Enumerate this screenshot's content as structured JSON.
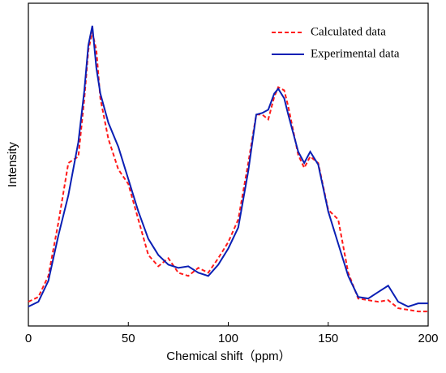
{
  "chart_data": {
    "type": "line",
    "xlabel": "Chemical shift（ppm）",
    "ylabel": "Intensity",
    "xlim": [
      0,
      200
    ],
    "xticks": [
      0,
      50,
      100,
      150,
      200
    ],
    "ylim": [
      0,
      100
    ],
    "legend": "upper right",
    "x": [
      0,
      5,
      10,
      15,
      20,
      25,
      28,
      30,
      32,
      34,
      36,
      40,
      45,
      50,
      55,
      60,
      65,
      70,
      75,
      80,
      85,
      90,
      95,
      100,
      105,
      110,
      114,
      117,
      120,
      123,
      125,
      128,
      130,
      135,
      138,
      141,
      145,
      150,
      155,
      160,
      165,
      170,
      175,
      180,
      185,
      190,
      195,
      200
    ],
    "series": [
      {
        "name": "Calculated data",
        "color": "#ff1a1a",
        "style": "dashed",
        "values": [
          7.5,
          9,
          15.5,
          32,
          50.5,
          52.5,
          70.5,
          85.5,
          91,
          85.5,
          70.5,
          58,
          48.5,
          44,
          33,
          22,
          18.5,
          21,
          16.5,
          15.5,
          18,
          16.5,
          21,
          26,
          33,
          50.5,
          65.5,
          65.5,
          64,
          71,
          74,
          73,
          68,
          53,
          49,
          52.5,
          50.5,
          36,
          33,
          16.5,
          8.5,
          8,
          7.5,
          8,
          5.5,
          5,
          4.5,
          4.5
        ]
      },
      {
        "name": "Experimental data",
        "color": "#0a1fb4",
        "style": "solid",
        "values": [
          6,
          7.5,
          14,
          28,
          40.5,
          57,
          73,
          87,
          93,
          80,
          72,
          63,
          55.5,
          45.5,
          35.5,
          27,
          22,
          19,
          18,
          18.5,
          16.5,
          15.5,
          19,
          24,
          30.5,
          48,
          65.5,
          66,
          67,
          72,
          73.5,
          70.5,
          65.5,
          54,
          50.5,
          54,
          50,
          35.5,
          25.5,
          15.5,
          9,
          8.5,
          10.5,
          12.5,
          7.5,
          6,
          7,
          7
        ]
      }
    ]
  }
}
